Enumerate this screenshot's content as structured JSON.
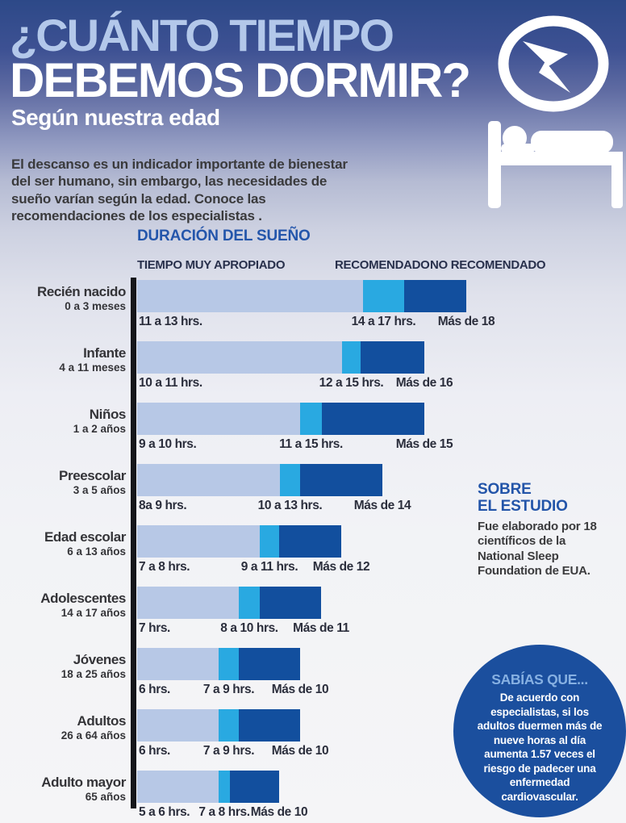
{
  "header": {
    "title_line1": "¿CUÁNTO TIEMPO",
    "title_line2": "DEBEMOS DORMIR?",
    "subtitle": "Según nuestra edad",
    "intro": "El descanso es un indicador importante de bienestar del ser humano, sin embargo, las necesidades de sueño varían según la edad. Conoce las recomendaciones de los especialistas .",
    "icons": [
      "clock-icon",
      "person-sleeping-bed-icon"
    ]
  },
  "chart_data": {
    "type": "bar",
    "orientation": "horizontal-stacked",
    "title": "DURACIÓN DEL SUEÑO",
    "legend": [
      "TIEMPO MUY APROPIADO",
      "RECOMENDADO",
      "NO RECOMENDADO"
    ],
    "segment_colors": [
      "#b7c8e6",
      "#29a9e1",
      "#124f9e"
    ],
    "axis_color": "#15161a",
    "unit": "hrs",
    "rows": [
      {
        "category": "Recién nacido",
        "age": "0 a 3 meses",
        "segments": [
          280,
          51,
          77
        ],
        "labels": [
          "11 a 13 hrs.",
          "14 a 17 hrs.",
          "Más de 18"
        ]
      },
      {
        "category": "Infante",
        "age": "4 a 11 meses",
        "segments": [
          254,
          23,
          79
        ],
        "labels": [
          "10 a 11 hrs.",
          "12 a 15 hrs.",
          "Más de 16"
        ]
      },
      {
        "category": "Niños",
        "age": "1 a 2 años",
        "segments": [
          202,
          27,
          127
        ],
        "labels": [
          "9 a 10 hrs.",
          "11 a 15 hrs.",
          "Más de 15"
        ]
      },
      {
        "category": "Preescolar",
        "age": "3 a 5 años",
        "segments": [
          177,
          25,
          102
        ],
        "labels": [
          "8a 9 hrs.",
          "10 a 13 hrs.",
          "Más de 14"
        ]
      },
      {
        "category": "Edad escolar",
        "age": "6 a 13 años",
        "segments": [
          152,
          24,
          77
        ],
        "labels": [
          "7 a 8 hrs.",
          "9 a 11 hrs.",
          "Más de 12"
        ]
      },
      {
        "category": "Adolescentes",
        "age": "14 a 17 años",
        "segments": [
          126,
          26,
          76
        ],
        "labels": [
          "7 hrs.",
          "8 a 10 hrs.",
          "Más de 11"
        ]
      },
      {
        "category": "Jóvenes",
        "age": "18 a 25 años",
        "segments": [
          101,
          25,
          76
        ],
        "labels": [
          "6 hrs.",
          "7 a 9 hrs.",
          "Más de 10"
        ]
      },
      {
        "category": "Adultos",
        "age": "26 a 64 años",
        "segments": [
          101,
          25,
          76
        ],
        "labels": [
          "6 hrs.",
          "7 a 9 hrs.",
          "Más de 10"
        ]
      },
      {
        "category": "Adulto mayor",
        "age": "65 años",
        "segments": [
          101,
          14,
          61
        ],
        "labels": [
          "5 a 6 hrs.",
          "7 a 8 hrs.",
          "Más de 10"
        ]
      }
    ]
  },
  "about": {
    "heading_line1": "SOBRE",
    "heading_line2": "EL ESTUDIO",
    "body": "Fue elaborado por 18 científicos de la National Sleep Foundation de EUA."
  },
  "fact": {
    "heading": "SABÍAS QUE...",
    "body": "De acuerdo con especialistas, si los adultos duermen más de nueve horas al día aumenta 1.57 veces el riesgo de padecer una enfermedad cardiovascular."
  },
  "colors": {
    "background_top": "#2d4988",
    "background_bottom": "#f5f5f7",
    "title_light_blue": "#b3c8ea",
    "accent_blue": "#2456ab",
    "fact_circle": "#1b4f9e",
    "fact_heading": "#86b0e2"
  }
}
